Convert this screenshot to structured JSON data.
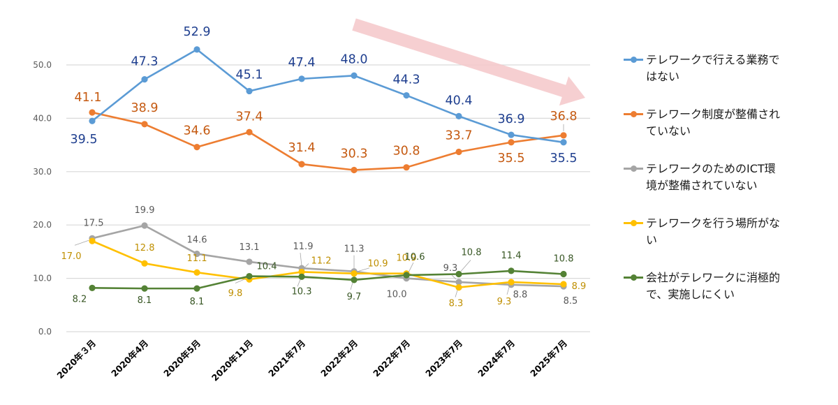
{
  "chart_data": {
    "type": "line",
    "title": "",
    "xlabel": "",
    "ylabel": "",
    "ylim": [
      0,
      55
    ],
    "yticks": [
      0,
      10,
      20,
      30,
      40,
      50
    ],
    "ytick_labels": [
      "0.0",
      "10.0",
      "20.0",
      "30.0",
      "40.0",
      "50.0"
    ],
    "grid": true,
    "legend_position": "right",
    "categories": [
      "2020年３月",
      "2020年4月",
      "2020年5月",
      "2020年11月",
      "2021年7月",
      "2022年2月",
      "2022年7月",
      "2023年7月",
      "2024年7月",
      "2025年7月"
    ],
    "series": [
      {
        "name": "テレワークで行える業務ではない",
        "color": "#5b9bd5",
        "label_color": "#1f3f8f",
        "values": [
          39.5,
          47.3,
          52.9,
          45.1,
          47.4,
          48.0,
          44.3,
          40.4,
          36.9,
          35.5
        ],
        "labels": [
          "39.5",
          "47.3",
          "52.9",
          "45.1",
          "47.4",
          "48.0",
          "44.3",
          "40.4",
          "36.9",
          "35.5"
        ]
      },
      {
        "name": "テレワーク制度が整備されていない",
        "color": "#ed7d31",
        "label_color": "#c55a11",
        "values": [
          41.1,
          38.9,
          34.6,
          37.4,
          31.4,
          30.3,
          30.8,
          33.7,
          35.5,
          36.8
        ],
        "labels": [
          "41.1",
          "38.9",
          "34.6",
          "37.4",
          "31.4",
          "30.3",
          "30.8",
          "33.7",
          "35.5",
          "36.8"
        ]
      },
      {
        "name": "テレワークのためのICT環境が整備されていない",
        "color": "#a5a5a5",
        "label_color": "#595959",
        "values": [
          17.5,
          19.9,
          14.6,
          13.1,
          11.9,
          11.3,
          10.0,
          9.3,
          8.8,
          8.5
        ],
        "labels": [
          "17.5",
          "19.9",
          "14.6",
          "13.1",
          "11.9",
          "11.3",
          "10.0",
          "9.3",
          "8.8",
          "8.5"
        ]
      },
      {
        "name": "テレワークを行う場所がない",
        "color": "#ffc000",
        "label_color": "#bf8f00",
        "values": [
          17.0,
          12.8,
          11.1,
          9.8,
          11.2,
          10.9,
          10.9,
          8.3,
          9.3,
          8.9
        ],
        "labels": [
          "17.0",
          "12.8",
          "11.1",
          "9.8",
          "11.2",
          "10.9",
          "10.9",
          "8.3",
          "9.3",
          "8.9"
        ]
      },
      {
        "name": "会社がテレワークに消極的で、実施しにくい",
        "color": "#548235",
        "label_color": "#375623",
        "values": [
          8.2,
          8.1,
          8.1,
          10.4,
          10.3,
          9.7,
          10.6,
          10.8,
          11.4,
          10.8
        ],
        "labels": [
          "8.2",
          "8.1",
          "8.1",
          "10.4",
          "10.3",
          "9.7",
          "10.6",
          "10.8",
          "11.4",
          "10.8"
        ]
      }
    ],
    "annotations": [
      {
        "type": "arrow",
        "description": "downward trend arrow",
        "color": "#f4c7c9",
        "direction": "down-right"
      }
    ]
  },
  "legend": {
    "items": [
      {
        "lines": [
          "テレワークで行える業務で",
          "はない"
        ],
        "color": "#5b9bd5"
      },
      {
        "lines": [
          "テレワーク制度が整備され",
          "ていない"
        ],
        "color": "#ed7d31"
      },
      {
        "lines": [
          "テレワークのためのICT環",
          "境が整備されていない"
        ],
        "color": "#a5a5a5"
      },
      {
        "lines": [
          "テレワークを行う場所がな",
          "い"
        ],
        "color": "#ffc000"
      },
      {
        "lines": [
          "会社がテレワークに消極的",
          "で、実施しにくい"
        ],
        "color": "#548235"
      }
    ]
  }
}
